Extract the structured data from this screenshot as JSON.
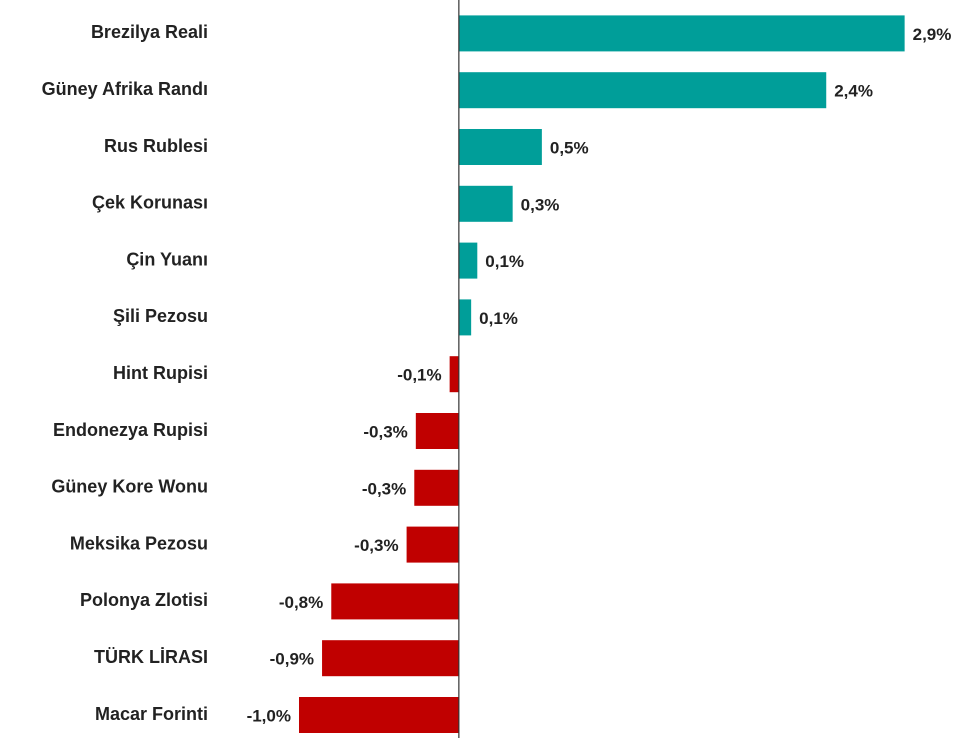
{
  "chart_data": {
    "type": "barh",
    "categories": [
      "Brezilya Reali",
      "Güney Afrika Randı",
      "Rus Rublesi",
      "Çek Korunası",
      "Çin Yuanı",
      "Şili Pezosu",
      "Hint Rupisi",
      "Endonezya Rupisi",
      "Güney Kore Wonu",
      "Meksika Pezosu",
      "Polonya Zlotisi",
      "TÜRK LİRASI",
      "Macar Forinti"
    ],
    "values": [
      2.9,
      2.39,
      0.54,
      0.35,
      0.12,
      0.08,
      -0.06,
      -0.28,
      -0.29,
      -0.34,
      -0.83,
      -0.89,
      -1.04
    ],
    "value_labels": [
      "2,9%",
      "2,4%",
      "0,5%",
      "0,3%",
      "0,1%",
      "0,1%",
      "-0,1%",
      "-0,3%",
      "-0,3%",
      "-0,3%",
      "-0,8%",
      "-0,9%",
      "-1,0%"
    ],
    "colors": {
      "positive": "#009e99",
      "negative": "#c00000"
    },
    "xlim": [
      -1.2,
      3.0
    ]
  }
}
